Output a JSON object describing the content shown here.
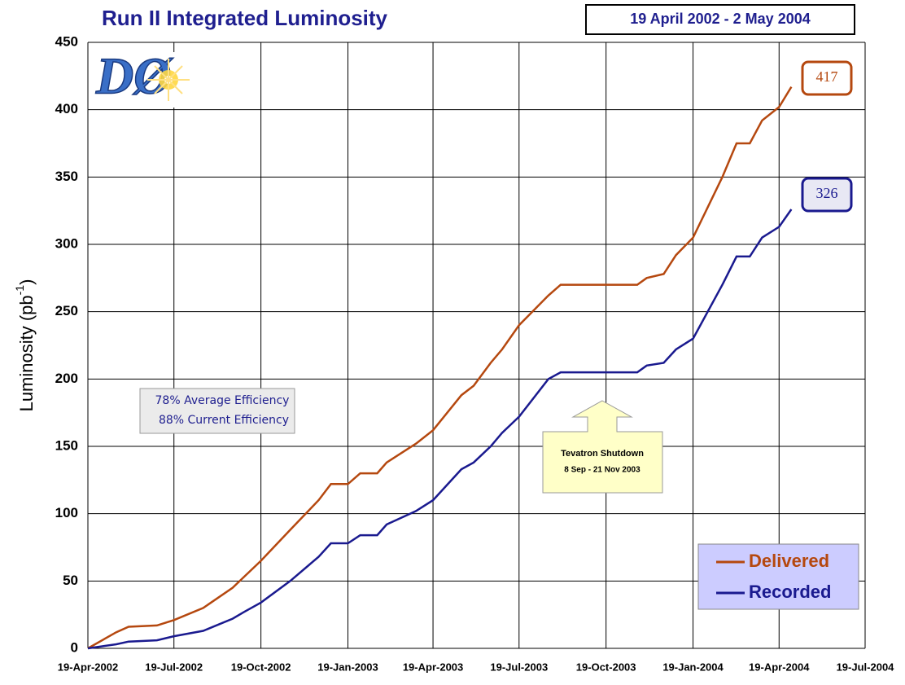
{
  "chart_data": {
    "type": "line",
    "title": "Run II Integrated Luminosity",
    "subtitle": "19 April 2002 - 2 May 2004",
    "logo": "DØ",
    "ylabel": {
      "text": "Luminosity (pb",
      "superscript": "-1",
      "suffix": ")"
    },
    "x": [
      "2002-04-19",
      "2002-05-19",
      "2002-06-01",
      "2002-07-01",
      "2002-07-19",
      "2002-08-19",
      "2002-09-19",
      "2002-10-01",
      "2002-10-19",
      "2002-11-19",
      "2002-12-19",
      "2003-01-01",
      "2003-01-19",
      "2003-02-01",
      "2003-02-19",
      "2003-03-01",
      "2003-04-01",
      "2003-04-19",
      "2003-05-19",
      "2003-06-01",
      "2003-06-19",
      "2003-07-01",
      "2003-07-19",
      "2003-08-19",
      "2003-09-01",
      "2003-09-08",
      "2003-11-21",
      "2003-12-01",
      "2003-12-19",
      "2004-01-01",
      "2004-01-19",
      "2004-02-19",
      "2004-03-05",
      "2004-03-19",
      "2004-04-01",
      "2004-04-19",
      "2004-05-02"
    ],
    "series": [
      {
        "name": "Delivered",
        "color": "#b5480f",
        "values": [
          0,
          12,
          16,
          17,
          21,
          30,
          45,
          53,
          65,
          88,
          110,
          122,
          122,
          130,
          130,
          138,
          152,
          162,
          188,
          195,
          212,
          222,
          240,
          262,
          270,
          270,
          270,
          275,
          278,
          292,
          305,
          350,
          375,
          375,
          392,
          402,
          417
        ]
      },
      {
        "name": "Recorded",
        "color": "#1a1a8f",
        "values": [
          0,
          3,
          5,
          6,
          9,
          13,
          22,
          27,
          34,
          50,
          68,
          78,
          78,
          84,
          84,
          92,
          102,
          110,
          133,
          138,
          150,
          160,
          172,
          200,
          205,
          205,
          205,
          210,
          212,
          222,
          230,
          270,
          291,
          291,
          305,
          313,
          326
        ]
      }
    ],
    "xlim": [
      "2002-04-19",
      "2004-07-19"
    ],
    "xticks": [
      {
        "value": "2002-04-19",
        "label": "19-Apr-2002"
      },
      {
        "value": "2002-07-19",
        "label": "19-Jul-2002"
      },
      {
        "value": "2002-10-19",
        "label": "19-Oct-2002"
      },
      {
        "value": "2003-01-19",
        "label": "19-Jan-2003"
      },
      {
        "value": "2003-04-19",
        "label": "19-Apr-2003"
      },
      {
        "value": "2003-07-19",
        "label": "19-Jul-2003"
      },
      {
        "value": "2003-10-19",
        "label": "19-Oct-2003"
      },
      {
        "value": "2004-01-19",
        "label": "19-Jan-2004"
      },
      {
        "value": "2004-04-19",
        "label": "19-Apr-2004"
      },
      {
        "value": "2004-07-19",
        "label": "19-Jul-2004"
      }
    ],
    "ylim": [
      0,
      450
    ],
    "yticks": [
      0,
      50,
      100,
      150,
      200,
      250,
      300,
      350,
      400,
      450
    ],
    "grid": true,
    "legend": "lower right",
    "annotations": {
      "efficiency": [
        "78% Average Efficiency",
        "88% Current Efficiency"
      ],
      "shutdown": [
        "Tevatron Shutdown",
        "8 Sep - 21 Nov 2003"
      ]
    }
  }
}
